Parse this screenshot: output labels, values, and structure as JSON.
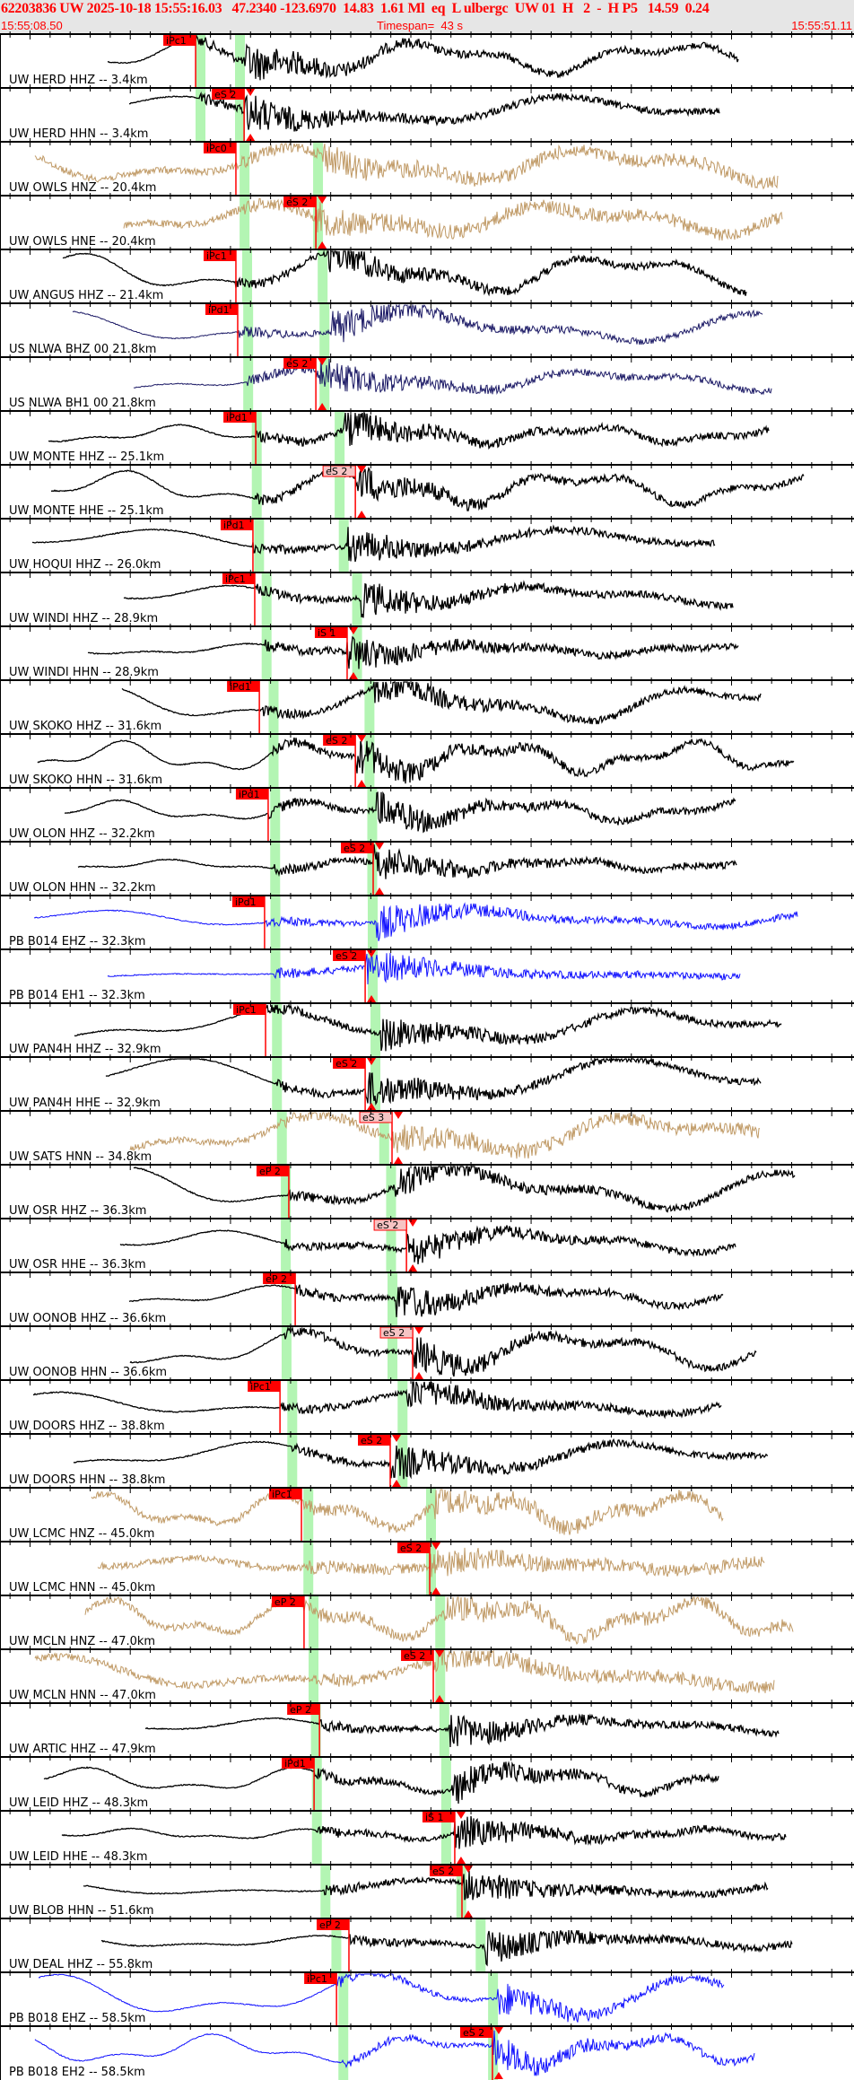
{
  "header": {
    "event_line": "62203836 UW 2025-10-18 15:55:16.03   47.2340 -123.6970  14.83  1.61 Ml  eq  L ulbergc  UW 01  H   2  -  H P5   14.59  0.24",
    "start_time": "15:55:08.50",
    "timespan": "Timespan=  43 s",
    "end_time": "15:55:51.11"
  },
  "time_axis": {
    "start_seconds": 8.5,
    "end_seconds": 51.11,
    "minor_tick_s": 1,
    "major_tick_s": 5
  },
  "colors": {
    "pick": "#ff0000",
    "pick_pale": "#f6c4c4",
    "window": "#b3f5b3",
    "trace_default": "#000000",
    "trace_hn": "#c09a66",
    "trace_bh": "#1c1a66",
    "trace_eh": "#1010ff",
    "header_bg": "#e6e6e6"
  },
  "traces": [
    {
      "label": "UW HERD HHZ -- 3.4km",
      "dist": 3.4,
      "color": "trace_default",
      "pick": {
        "label": "iPc1",
        "time": "15:55:18.26",
        "pale": false
      }
    },
    {
      "label": "UW HERD HHN -- 3.4km",
      "dist": 3.4,
      "color": "trace_default",
      "pick": {
        "label": "eS 2",
        "time": "15:55:20.68",
        "pale": false
      }
    },
    {
      "label": "UW OWLS HNZ -- 20.4km",
      "dist": 20.4,
      "color": "trace_hn",
      "pick": {
        "label": "iPc0",
        "time": "15:55:20.27",
        "pale": false
      }
    },
    {
      "label": "UW OWLS HNE -- 20.4km",
      "dist": 20.4,
      "color": "trace_hn",
      "pick": {
        "label": "eS 2",
        "time": "15:55:24.26",
        "pale": false
      }
    },
    {
      "label": "UW ANGUS HHZ -- 21.4km",
      "dist": 21.4,
      "color": "trace_default",
      "pick": {
        "label": "iPc1",
        "time": "15:55:20.27",
        "pale": false
      }
    },
    {
      "label": "US NLWA BHZ 00 21.8km",
      "dist": 21.8,
      "color": "trace_bh",
      "pick": {
        "label": "iPd1",
        "time": "15:55:20.36",
        "pale": false
      }
    },
    {
      "label": "US NLWA BH1 00 21.8km",
      "dist": 21.8,
      "color": "trace_bh",
      "pick": {
        "label": "eS 2",
        "time": "15:55:24.26",
        "pale": false
      }
    },
    {
      "label": "UW MONTE HHZ -- 25.1km",
      "dist": 25.1,
      "color": "trace_default",
      "pick": {
        "label": "iPd1",
        "time": "15:55:21.26",
        "pale": false
      }
    },
    {
      "label": "UW MONTE HHE -- 25.1km",
      "dist": 25.1,
      "color": "trace_default",
      "pick": {
        "label": "eS 2",
        "time": "15:55:26.23",
        "pale": true
      }
    },
    {
      "label": "UW HOQUI HHZ -- 26.0km",
      "dist": 26.0,
      "color": "trace_default",
      "pick": {
        "label": "iPd1",
        "time": "15:55:21.12",
        "pale": false
      }
    },
    {
      "label": "UW WINDI HHZ -- 28.9km",
      "dist": 28.9,
      "color": "trace_default",
      "pick": {
        "label": "iPc1",
        "time": "15:55:21.21",
        "pale": false
      }
    },
    {
      "label": "UW WINDI HHN -- 28.9km",
      "dist": 28.9,
      "color": "trace_default",
      "pick": {
        "label": "iS 1",
        "time": "15:55:25.82",
        "pale": false
      }
    },
    {
      "label": "UW SKOKO HHZ -- 31.6km",
      "dist": 31.6,
      "color": "trace_default",
      "pick": {
        "label": "iPd1",
        "time": "15:55:21.44",
        "pale": false
      }
    },
    {
      "label": "UW SKOKO HHN -- 31.6km",
      "dist": 31.6,
      "color": "trace_default",
      "pick": {
        "label": "eS 2",
        "time": "15:55:26.23",
        "pale": false
      }
    },
    {
      "label": "UW OLON HHZ -- 32.2km",
      "dist": 32.2,
      "color": "trace_default",
      "pick": {
        "label": "iPd1",
        "time": "15:55:21.88",
        "pale": false
      }
    },
    {
      "label": "UW OLON HHN -- 32.2km",
      "dist": 32.2,
      "color": "trace_default",
      "pick": {
        "label": "eS 2",
        "time": "15:55:27.12",
        "pale": false
      }
    },
    {
      "label": "PB B014 EHZ -- 32.3km",
      "dist": 32.3,
      "color": "trace_eh",
      "pick": {
        "label": "iPd1",
        "time": "15:55:21.70",
        "pale": false
      }
    },
    {
      "label": "PB B014 EH1 -- 32.3km",
      "dist": 32.3,
      "color": "trace_eh",
      "pick": {
        "label": "eS 2",
        "time": "15:55:26.72",
        "pale": false
      }
    },
    {
      "label": "UW PAN4H HHZ -- 32.9km",
      "dist": 32.9,
      "color": "trace_default",
      "pick": {
        "label": "iPc1",
        "time": "15:55:21.75",
        "pale": false
      }
    },
    {
      "label": "UW PAN4H HHE -- 32.9km",
      "dist": 32.9,
      "color": "trace_default",
      "pick": {
        "label": "eS 2",
        "time": "15:55:26.72",
        "pale": false
      }
    },
    {
      "label": "UW SATS HNN -- 34.8km",
      "dist": 34.8,
      "color": "trace_hn",
      "pick": {
        "label": "eS 3",
        "time": "15:55:28.06",
        "pale": true
      }
    },
    {
      "label": "UW OSR HHZ -- 36.3km",
      "dist": 36.3,
      "color": "trace_default",
      "pick": {
        "label": "eP 2",
        "time": "15:55:22.91",
        "pale": false
      }
    },
    {
      "label": "UW OSR HHE -- 36.3km",
      "dist": 36.3,
      "color": "trace_default",
      "pick": {
        "label": "eS 2",
        "time": "15:55:28.78",
        "pale": true
      }
    },
    {
      "label": "UW OONOB HHZ -- 36.6km",
      "dist": 36.6,
      "color": "trace_default",
      "pick": {
        "label": "eP 2",
        "time": "15:55:23.23",
        "pale": false
      }
    },
    {
      "label": "UW OONOB HHN -- 36.6km",
      "dist": 36.6,
      "color": "trace_default",
      "pick": {
        "label": "eS 2",
        "time": "15:55:29.09",
        "pale": true
      }
    },
    {
      "label": "UW DOORS HHZ -- 38.8km",
      "dist": 38.8,
      "color": "trace_default",
      "pick": {
        "label": "iPc1",
        "time": "15:55:22.47",
        "pale": false
      }
    },
    {
      "label": "UW DOORS HHN -- 38.8km",
      "dist": 38.8,
      "color": "trace_default",
      "pick": {
        "label": "eS 2",
        "time": "15:55:27.97",
        "pale": false
      }
    },
    {
      "label": "UW LCMC HNZ -- 45.0km",
      "dist": 45.0,
      "color": "trace_hn",
      "pick": {
        "label": "iPc1",
        "time": "15:55:23.54",
        "pale": false
      }
    },
    {
      "label": "UW LCMC HNN -- 45.0km",
      "dist": 45.0,
      "color": "trace_hn",
      "pick": {
        "label": "eS 2",
        "time": "15:55:29.94",
        "pale": false
      }
    },
    {
      "label": "UW MCLN HNZ -- 47.0km",
      "dist": 47.0,
      "color": "trace_hn",
      "pick": {
        "label": "eP 2",
        "time": "15:55:23.67",
        "pale": false
      }
    },
    {
      "label": "UW MCLN HNN -- 47.0km",
      "dist": 47.0,
      "color": "trace_hn",
      "pick": {
        "label": "eS 2",
        "time": "15:55:30.12",
        "pale": false
      }
    },
    {
      "label": "UW ARTIC HHZ -- 47.9km",
      "dist": 47.9,
      "color": "trace_default",
      "pick": {
        "label": "eP 2",
        "time": "15:55:24.44",
        "pale": false
      }
    },
    {
      "label": "UW LEID HHZ -- 48.3km",
      "dist": 48.3,
      "color": "trace_default",
      "pick": {
        "label": "iPd1",
        "time": "15:55:24.17",
        "pale": false
      }
    },
    {
      "label": "UW LEID HHE -- 48.3km",
      "dist": 48.3,
      "color": "trace_default",
      "pick": {
        "label": "iS 1",
        "time": "15:55:31.19",
        "pale": false
      }
    },
    {
      "label": "UW BLOB HHN -- 51.6km",
      "dist": 51.6,
      "color": "trace_default",
      "pick": {
        "label": "eS 2",
        "time": "15:55:31.55",
        "pale": false
      }
    },
    {
      "label": "UW DEAL HHZ -- 55.8km",
      "dist": 55.8,
      "color": "trace_default",
      "pick": {
        "label": "eP 2",
        "time": "15:55:25.91",
        "pale": false
      }
    },
    {
      "label": "PB B018 EHZ -- 58.5km",
      "dist": 58.5,
      "color": "trace_eh",
      "pick": {
        "label": "iPc1",
        "time": "15:55:25.29",
        "pale": false
      }
    },
    {
      "label": "PB B018 EH2 -- 58.5km",
      "dist": 58.5,
      "color": "trace_eh",
      "pick": {
        "label": "eS 2",
        "time": "15:55:33.07",
        "pale": false
      }
    }
  ]
}
